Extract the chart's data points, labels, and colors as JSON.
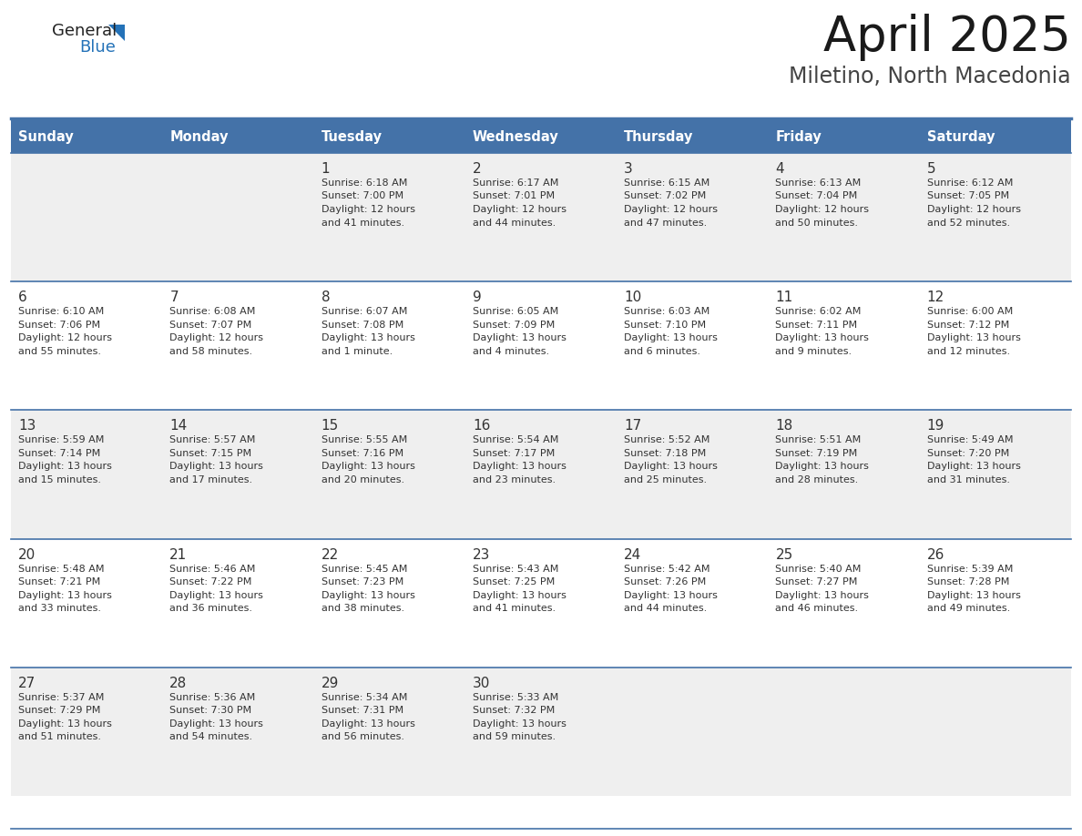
{
  "title": "April 2025",
  "subtitle": "Miletino, North Macedonia",
  "header_bg_color": "#4472A8",
  "header_text_color": "#FFFFFF",
  "day_names": [
    "Sunday",
    "Monday",
    "Tuesday",
    "Wednesday",
    "Thursday",
    "Friday",
    "Saturday"
  ],
  "bg_color": "#FFFFFF",
  "cell_bg_odd": "#EFEFEF",
  "cell_bg_even": "#FFFFFF",
  "border_color": "#4472A8",
  "text_color": "#333333",
  "logo_text_color": "#1a1a1a",
  "logo_blue_color": "#2472B8",
  "title_color": "#1a1a1a",
  "days": [
    {
      "day": 1,
      "col": 2,
      "row": 0,
      "sunrise": "6:18 AM",
      "sunset": "7:00 PM",
      "daylight_l1": "12 hours",
      "daylight_l2": "and 41 minutes."
    },
    {
      "day": 2,
      "col": 3,
      "row": 0,
      "sunrise": "6:17 AM",
      "sunset": "7:01 PM",
      "daylight_l1": "12 hours",
      "daylight_l2": "and 44 minutes."
    },
    {
      "day": 3,
      "col": 4,
      "row": 0,
      "sunrise": "6:15 AM",
      "sunset": "7:02 PM",
      "daylight_l1": "12 hours",
      "daylight_l2": "and 47 minutes."
    },
    {
      "day": 4,
      "col": 5,
      "row": 0,
      "sunrise": "6:13 AM",
      "sunset": "7:04 PM",
      "daylight_l1": "12 hours",
      "daylight_l2": "and 50 minutes."
    },
    {
      "day": 5,
      "col": 6,
      "row": 0,
      "sunrise": "6:12 AM",
      "sunset": "7:05 PM",
      "daylight_l1": "12 hours",
      "daylight_l2": "and 52 minutes."
    },
    {
      "day": 6,
      "col": 0,
      "row": 1,
      "sunrise": "6:10 AM",
      "sunset": "7:06 PM",
      "daylight_l1": "12 hours",
      "daylight_l2": "and 55 minutes."
    },
    {
      "day": 7,
      "col": 1,
      "row": 1,
      "sunrise": "6:08 AM",
      "sunset": "7:07 PM",
      "daylight_l1": "12 hours",
      "daylight_l2": "and 58 minutes."
    },
    {
      "day": 8,
      "col": 2,
      "row": 1,
      "sunrise": "6:07 AM",
      "sunset": "7:08 PM",
      "daylight_l1": "13 hours",
      "daylight_l2": "and 1 minute."
    },
    {
      "day": 9,
      "col": 3,
      "row": 1,
      "sunrise": "6:05 AM",
      "sunset": "7:09 PM",
      "daylight_l1": "13 hours",
      "daylight_l2": "and 4 minutes."
    },
    {
      "day": 10,
      "col": 4,
      "row": 1,
      "sunrise": "6:03 AM",
      "sunset": "7:10 PM",
      "daylight_l1": "13 hours",
      "daylight_l2": "and 6 minutes."
    },
    {
      "day": 11,
      "col": 5,
      "row": 1,
      "sunrise": "6:02 AM",
      "sunset": "7:11 PM",
      "daylight_l1": "13 hours",
      "daylight_l2": "and 9 minutes."
    },
    {
      "day": 12,
      "col": 6,
      "row": 1,
      "sunrise": "6:00 AM",
      "sunset": "7:12 PM",
      "daylight_l1": "13 hours",
      "daylight_l2": "and 12 minutes."
    },
    {
      "day": 13,
      "col": 0,
      "row": 2,
      "sunrise": "5:59 AM",
      "sunset": "7:14 PM",
      "daylight_l1": "13 hours",
      "daylight_l2": "and 15 minutes."
    },
    {
      "day": 14,
      "col": 1,
      "row": 2,
      "sunrise": "5:57 AM",
      "sunset": "7:15 PM",
      "daylight_l1": "13 hours",
      "daylight_l2": "and 17 minutes."
    },
    {
      "day": 15,
      "col": 2,
      "row": 2,
      "sunrise": "5:55 AM",
      "sunset": "7:16 PM",
      "daylight_l1": "13 hours",
      "daylight_l2": "and 20 minutes."
    },
    {
      "day": 16,
      "col": 3,
      "row": 2,
      "sunrise": "5:54 AM",
      "sunset": "7:17 PM",
      "daylight_l1": "13 hours",
      "daylight_l2": "and 23 minutes."
    },
    {
      "day": 17,
      "col": 4,
      "row": 2,
      "sunrise": "5:52 AM",
      "sunset": "7:18 PM",
      "daylight_l1": "13 hours",
      "daylight_l2": "and 25 minutes."
    },
    {
      "day": 18,
      "col": 5,
      "row": 2,
      "sunrise": "5:51 AM",
      "sunset": "7:19 PM",
      "daylight_l1": "13 hours",
      "daylight_l2": "and 28 minutes."
    },
    {
      "day": 19,
      "col": 6,
      "row": 2,
      "sunrise": "5:49 AM",
      "sunset": "7:20 PM",
      "daylight_l1": "13 hours",
      "daylight_l2": "and 31 minutes."
    },
    {
      "day": 20,
      "col": 0,
      "row": 3,
      "sunrise": "5:48 AM",
      "sunset": "7:21 PM",
      "daylight_l1": "13 hours",
      "daylight_l2": "and 33 minutes."
    },
    {
      "day": 21,
      "col": 1,
      "row": 3,
      "sunrise": "5:46 AM",
      "sunset": "7:22 PM",
      "daylight_l1": "13 hours",
      "daylight_l2": "and 36 minutes."
    },
    {
      "day": 22,
      "col": 2,
      "row": 3,
      "sunrise": "5:45 AM",
      "sunset": "7:23 PM",
      "daylight_l1": "13 hours",
      "daylight_l2": "and 38 minutes."
    },
    {
      "day": 23,
      "col": 3,
      "row": 3,
      "sunrise": "5:43 AM",
      "sunset": "7:25 PM",
      "daylight_l1": "13 hours",
      "daylight_l2": "and 41 minutes."
    },
    {
      "day": 24,
      "col": 4,
      "row": 3,
      "sunrise": "5:42 AM",
      "sunset": "7:26 PM",
      "daylight_l1": "13 hours",
      "daylight_l2": "and 44 minutes."
    },
    {
      "day": 25,
      "col": 5,
      "row": 3,
      "sunrise": "5:40 AM",
      "sunset": "7:27 PM",
      "daylight_l1": "13 hours",
      "daylight_l2": "and 46 minutes."
    },
    {
      "day": 26,
      "col": 6,
      "row": 3,
      "sunrise": "5:39 AM",
      "sunset": "7:28 PM",
      "daylight_l1": "13 hours",
      "daylight_l2": "and 49 minutes."
    },
    {
      "day": 27,
      "col": 0,
      "row": 4,
      "sunrise": "5:37 AM",
      "sunset": "7:29 PM",
      "daylight_l1": "13 hours",
      "daylight_l2": "and 51 minutes."
    },
    {
      "day": 28,
      "col": 1,
      "row": 4,
      "sunrise": "5:36 AM",
      "sunset": "7:30 PM",
      "daylight_l1": "13 hours",
      "daylight_l2": "and 54 minutes."
    },
    {
      "day": 29,
      "col": 2,
      "row": 4,
      "sunrise": "5:34 AM",
      "sunset": "7:31 PM",
      "daylight_l1": "13 hours",
      "daylight_l2": "and 56 minutes."
    },
    {
      "day": 30,
      "col": 3,
      "row": 4,
      "sunrise": "5:33 AM",
      "sunset": "7:32 PM",
      "daylight_l1": "13 hours",
      "daylight_l2": "and 59 minutes."
    }
  ]
}
